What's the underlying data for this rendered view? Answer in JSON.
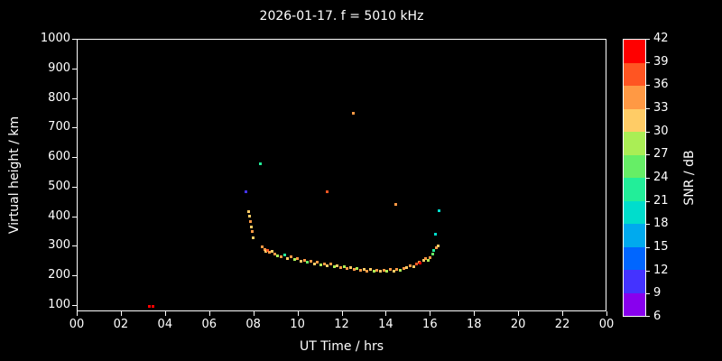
{
  "title": "2026-01-17. f = 5010 kHz",
  "colors": {
    "background": "#000000",
    "foreground": "#ffffff"
  },
  "chart_data": {
    "type": "scatter",
    "title": "2026-01-17. f = 5010 kHz",
    "xlabel": "UT Time / hrs",
    "ylabel": "Virtual height / km",
    "xlim": [
      0,
      24
    ],
    "ylim": [
      100,
      1000
    ],
    "grid": false,
    "x_ticks": [
      {
        "value": 0,
        "label": "00"
      },
      {
        "value": 2,
        "label": "02"
      },
      {
        "value": 4,
        "label": "04"
      },
      {
        "value": 6,
        "label": "06"
      },
      {
        "value": 8,
        "label": "08"
      },
      {
        "value": 10,
        "label": "10"
      },
      {
        "value": 12,
        "label": "12"
      },
      {
        "value": 14,
        "label": "14"
      },
      {
        "value": 16,
        "label": "16"
      },
      {
        "value": 18,
        "label": "18"
      },
      {
        "value": 20,
        "label": "20"
      },
      {
        "value": 22,
        "label": "22"
      },
      {
        "value": 24,
        "label": "00"
      }
    ],
    "y_ticks": [
      100,
      200,
      300,
      400,
      500,
      600,
      700,
      800,
      900,
      1000
    ],
    "points_format": [
      "ut_hour",
      "virtual_height_km",
      "snr_db"
    ],
    "points": [
      [
        3.25,
        100,
        41
      ],
      [
        3.4,
        100,
        41
      ],
      [
        7.6,
        488,
        10
      ],
      [
        7.72,
        420,
        32
      ],
      [
        7.76,
        404,
        30
      ],
      [
        7.8,
        388,
        33
      ],
      [
        7.84,
        370,
        31
      ],
      [
        7.88,
        352,
        34
      ],
      [
        7.92,
        333,
        30
      ],
      [
        8.27,
        583,
        22
      ],
      [
        8.35,
        300,
        33
      ],
      [
        8.45,
        293,
        35
      ],
      [
        8.52,
        287,
        30
      ],
      [
        8.6,
        290,
        37
      ],
      [
        8.68,
        282,
        33
      ],
      [
        8.78,
        286,
        31
      ],
      [
        8.9,
        278,
        33
      ],
      [
        9.05,
        272,
        29
      ],
      [
        9.2,
        268,
        33
      ],
      [
        9.35,
        274,
        22
      ],
      [
        9.5,
        263,
        31
      ],
      [
        9.65,
        268,
        33
      ],
      [
        9.8,
        258,
        27
      ],
      [
        9.95,
        262,
        33
      ],
      [
        10.1,
        252,
        30
      ],
      [
        10.25,
        257,
        33
      ],
      [
        10.4,
        248,
        25
      ],
      [
        10.55,
        252,
        33
      ],
      [
        10.7,
        244,
        30
      ],
      [
        10.85,
        248,
        33
      ],
      [
        11.0,
        240,
        28
      ],
      [
        11.15,
        244,
        33
      ],
      [
        11.3,
        488,
        38
      ],
      [
        11.3,
        238,
        30
      ],
      [
        11.45,
        242,
        33
      ],
      [
        11.6,
        234,
        27
      ],
      [
        11.75,
        238,
        31
      ],
      [
        11.9,
        230,
        33
      ],
      [
        12.05,
        234,
        29
      ],
      [
        12.2,
        228,
        33
      ],
      [
        12.35,
        231,
        31
      ],
      [
        12.45,
        752,
        33
      ],
      [
        12.5,
        224,
        33
      ],
      [
        12.65,
        228,
        28
      ],
      [
        12.8,
        222,
        33
      ],
      [
        12.95,
        226,
        30
      ],
      [
        13.1,
        220,
        33
      ],
      [
        13.25,
        224,
        31
      ],
      [
        13.4,
        218,
        29
      ],
      [
        13.55,
        222,
        33
      ],
      [
        13.7,
        218,
        30
      ],
      [
        13.85,
        222,
        33
      ],
      [
        14.0,
        218,
        28
      ],
      [
        14.15,
        224,
        33
      ],
      [
        14.3,
        220,
        31
      ],
      [
        14.4,
        445,
        33
      ],
      [
        14.45,
        226,
        33
      ],
      [
        14.6,
        222,
        29
      ],
      [
        14.75,
        228,
        33
      ],
      [
        14.9,
        232,
        30
      ],
      [
        15.05,
        238,
        34
      ],
      [
        15.2,
        234,
        31
      ],
      [
        15.35,
        242,
        36
      ],
      [
        15.45,
        250,
        33
      ],
      [
        15.5,
        246,
        40
      ],
      [
        15.65,
        256,
        31
      ],
      [
        15.75,
        262,
        33
      ],
      [
        15.85,
        255,
        29
      ],
      [
        15.95,
        266,
        33
      ],
      [
        16.05,
        276,
        24
      ],
      [
        16.1,
        290,
        21
      ],
      [
        16.2,
        345,
        18
      ],
      [
        16.25,
        298,
        33
      ],
      [
        16.3,
        305,
        31
      ],
      [
        16.35,
        422,
        20
      ]
    ]
  },
  "colorbar": {
    "label": "SNR / dB",
    "min": 6,
    "max": 42,
    "tick_values": [
      6,
      9,
      12,
      15,
      18,
      21,
      24,
      27,
      30,
      33,
      36,
      39,
      42
    ],
    "segments_bottom_to_top": [
      "#8800ee",
      "#4433ff",
      "#0066ff",
      "#00aaee",
      "#00ddcc",
      "#22ee99",
      "#66ee66",
      "#aaee55",
      "#ffcc66",
      "#ff9944",
      "#ff5522",
      "#ff0000"
    ]
  }
}
